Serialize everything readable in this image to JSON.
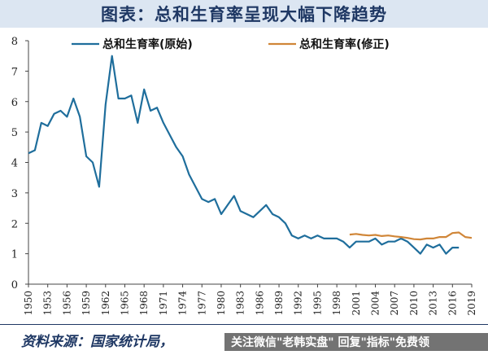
{
  "header": {
    "title": "图表：总和生育率呈现大幅下降趋势"
  },
  "footer": {
    "source": "资料来源：国家统计局，",
    "watermark": "关注微信\"老韩实盘\" 回复\"指标\"免费领"
  },
  "colors": {
    "original": "#1f6e9c",
    "revised": "#d08638",
    "title": "#1f3864"
  },
  "chart_data": {
    "type": "line",
    "title": "",
    "xlabel": "",
    "ylabel": "",
    "ylim": [
      0,
      8
    ],
    "yticks": [
      "0",
      "1",
      "2",
      "3",
      "4",
      "5",
      "6",
      "7",
      "8"
    ],
    "xlim": [
      1950,
      2019
    ],
    "xticks": [
      "1950",
      "1953",
      "1956",
      "1959",
      "1962",
      "1965",
      "1968",
      "1971",
      "1974",
      "1977",
      "1980",
      "1983",
      "1986",
      "1989",
      "1992",
      "1995",
      "1998",
      "2001",
      "2004",
      "2007",
      "2010",
      "2013",
      "2016",
      "2019"
    ],
    "grid": false,
    "legend": "top",
    "series": [
      {
        "name": "总和生育率(原始)",
        "color": "#1f6e9c",
        "x": [
          1950,
          1951,
          1952,
          1953,
          1954,
          1955,
          1956,
          1957,
          1958,
          1959,
          1960,
          1961,
          1962,
          1963,
          1964,
          1965,
          1966,
          1967,
          1968,
          1969,
          1970,
          1971,
          1972,
          1973,
          1974,
          1975,
          1976,
          1977,
          1978,
          1979,
          1980,
          1981,
          1982,
          1983,
          1984,
          1985,
          1986,
          1987,
          1988,
          1989,
          1990,
          1991,
          1992,
          1993,
          1994,
          1995,
          1996,
          1997,
          1998,
          1999,
          2000,
          2001,
          2002,
          2003,
          2004,
          2005,
          2006,
          2007,
          2008,
          2009,
          2010,
          2011,
          2012,
          2013,
          2014,
          2015,
          2016,
          2017
        ],
        "y": [
          4.3,
          4.4,
          5.3,
          5.2,
          5.6,
          5.7,
          5.5,
          6.1,
          5.5,
          4.2,
          4.0,
          3.2,
          5.9,
          7.5,
          6.1,
          6.1,
          6.2,
          5.3,
          6.4,
          5.7,
          5.8,
          5.3,
          4.9,
          4.5,
          4.2,
          3.6,
          3.2,
          2.8,
          2.7,
          2.8,
          2.3,
          2.6,
          2.9,
          2.4,
          2.3,
          2.2,
          2.4,
          2.6,
          2.3,
          2.2,
          2.0,
          1.6,
          1.5,
          1.6,
          1.5,
          1.6,
          1.5,
          1.5,
          1.5,
          1.4,
          1.2,
          1.4,
          1.4,
          1.4,
          1.5,
          1.3,
          1.4,
          1.4,
          1.5,
          1.4,
          1.2,
          1.0,
          1.3,
          1.2,
          1.3,
          1.0,
          1.2,
          1.2
        ]
      },
      {
        "name": "总和生育率(修正)",
        "color": "#d08638",
        "x": [
          2000,
          2001,
          2002,
          2003,
          2004,
          2005,
          2006,
          2007,
          2008,
          2009,
          2010,
          2011,
          2012,
          2013,
          2014,
          2015,
          2016,
          2017,
          2018,
          2019
        ],
        "y": [
          1.63,
          1.65,
          1.62,
          1.6,
          1.62,
          1.58,
          1.6,
          1.57,
          1.55,
          1.52,
          1.48,
          1.47,
          1.5,
          1.5,
          1.55,
          1.55,
          1.68,
          1.7,
          1.55,
          1.52
        ]
      }
    ]
  }
}
